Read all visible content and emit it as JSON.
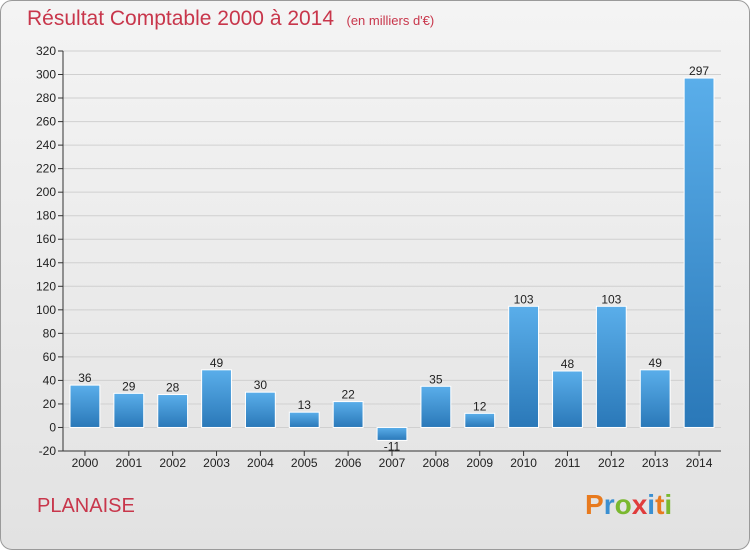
{
  "header": {
    "title": "Résultat Comptable 2000 à 2014",
    "subtitle": "(en milliers d'€)"
  },
  "commune": "PLANAISE",
  "logo": {
    "letters": [
      "P",
      "r",
      "o",
      "x",
      "i",
      "t",
      "i"
    ],
    "colors": [
      "#e87a1e",
      "#3a8fd1",
      "#7ab82f",
      "#e03c3c",
      "#3a8fd1",
      "#e87a1e",
      "#7ab82f"
    ]
  },
  "colors": {
    "bar_light": "#5aaeea",
    "bar_dark": "#2a78b8",
    "grid": "#d0d0d0",
    "axis": "#333333",
    "title": "#c8364b"
  },
  "chart_data": {
    "type": "bar",
    "categories": [
      "2000",
      "2001",
      "2002",
      "2003",
      "2004",
      "2005",
      "2006",
      "2007",
      "2008",
      "2009",
      "2010",
      "2011",
      "2012",
      "2013",
      "2014"
    ],
    "values": [
      36,
      29,
      28,
      49,
      30,
      13,
      22,
      -11,
      35,
      12,
      103,
      48,
      103,
      49,
      297
    ],
    "labels": [
      "36",
      "29",
      "28",
      "49",
      "30",
      "13",
      "22",
      "-11",
      "35",
      "12",
      "103",
      "48",
      "103",
      "49",
      "297"
    ],
    "title": "Résultat Comptable 2000 à 2014",
    "xlabel": "",
    "ylabel": "",
    "ylim": [
      -20,
      320
    ],
    "yticks": [
      -20,
      0,
      20,
      40,
      60,
      80,
      100,
      120,
      140,
      160,
      180,
      200,
      220,
      240,
      260,
      280,
      300,
      320
    ],
    "grid": true,
    "legend": "none"
  }
}
